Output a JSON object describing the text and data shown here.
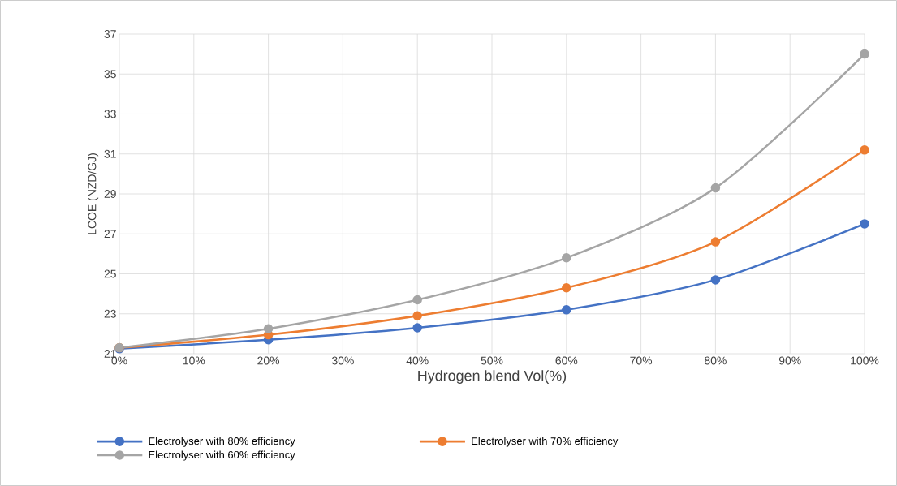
{
  "chart_data": {
    "type": "line",
    "xlabel": "Hydrogen blend Vol(%)",
    "ylabel": "LCOE (NZD/GJ)",
    "x": [
      0,
      20,
      40,
      60,
      80,
      100
    ],
    "series": [
      {
        "name": "Electrolyser with 80% efficiency",
        "color": "#4472c4",
        "values": [
          21.25,
          21.7,
          22.3,
          23.2,
          24.7,
          27.5
        ]
      },
      {
        "name": "Electrolyser with 70% efficiency",
        "color": "#ed7d31",
        "values": [
          21.3,
          21.95,
          22.9,
          24.3,
          26.6,
          31.2
        ]
      },
      {
        "name": "Electrolyser with 60% efficiency",
        "color": "#a5a5a5",
        "values": [
          21.3,
          22.25,
          23.7,
          25.8,
          29.3,
          36.0
        ]
      }
    ],
    "xlim": [
      0,
      100
    ],
    "xticks": [
      {
        "value": 0,
        "label": "0%"
      },
      {
        "value": 10,
        "label": "10%"
      },
      {
        "value": 20,
        "label": "20%"
      },
      {
        "value": 30,
        "label": "30%"
      },
      {
        "value": 40,
        "label": "40%"
      },
      {
        "value": 50,
        "label": "50%"
      },
      {
        "value": 60,
        "label": "60%"
      },
      {
        "value": 70,
        "label": "70%"
      },
      {
        "value": 80,
        "label": "80%"
      },
      {
        "value": 90,
        "label": "90%"
      },
      {
        "value": 100,
        "label": "100%"
      }
    ],
    "ylim": [
      21,
      37
    ],
    "yticks": [
      21,
      23,
      25,
      27,
      29,
      31,
      33,
      35,
      37
    ],
    "grid": true,
    "legend": "bottom",
    "marker": "circle",
    "line_style": "solid"
  }
}
